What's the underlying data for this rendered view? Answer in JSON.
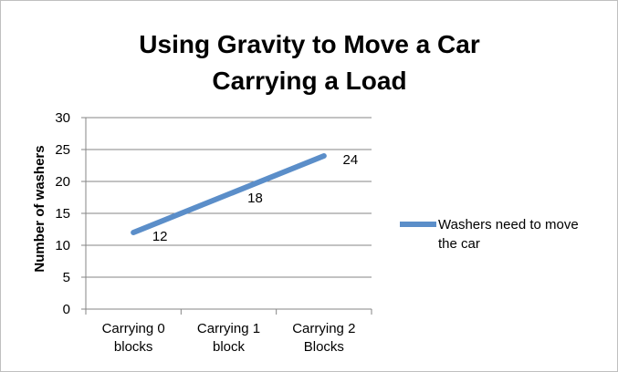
{
  "chart_data": {
    "type": "line",
    "title": [
      "Using Gravity to Move a Car",
      "Carrying a Load"
    ],
    "ylabel": "Number of washers",
    "xlabel": "",
    "categories": [
      [
        "Carrying 0",
        "blocks"
      ],
      [
        "Carrying 1",
        "block"
      ],
      [
        "Carrying 2",
        "Blocks"
      ]
    ],
    "series": [
      {
        "name": [
          "Washers need to move",
          "the car"
        ],
        "values": [
          12,
          18,
          24
        ],
        "color": "#5b8ec9"
      }
    ],
    "data_labels": [
      "12",
      "18",
      "24"
    ],
    "ylim": [
      0,
      30
    ],
    "yticks": [
      "0",
      "5",
      "10",
      "15",
      "20",
      "25",
      "30"
    ],
    "grid": true,
    "legend_position": "right"
  }
}
